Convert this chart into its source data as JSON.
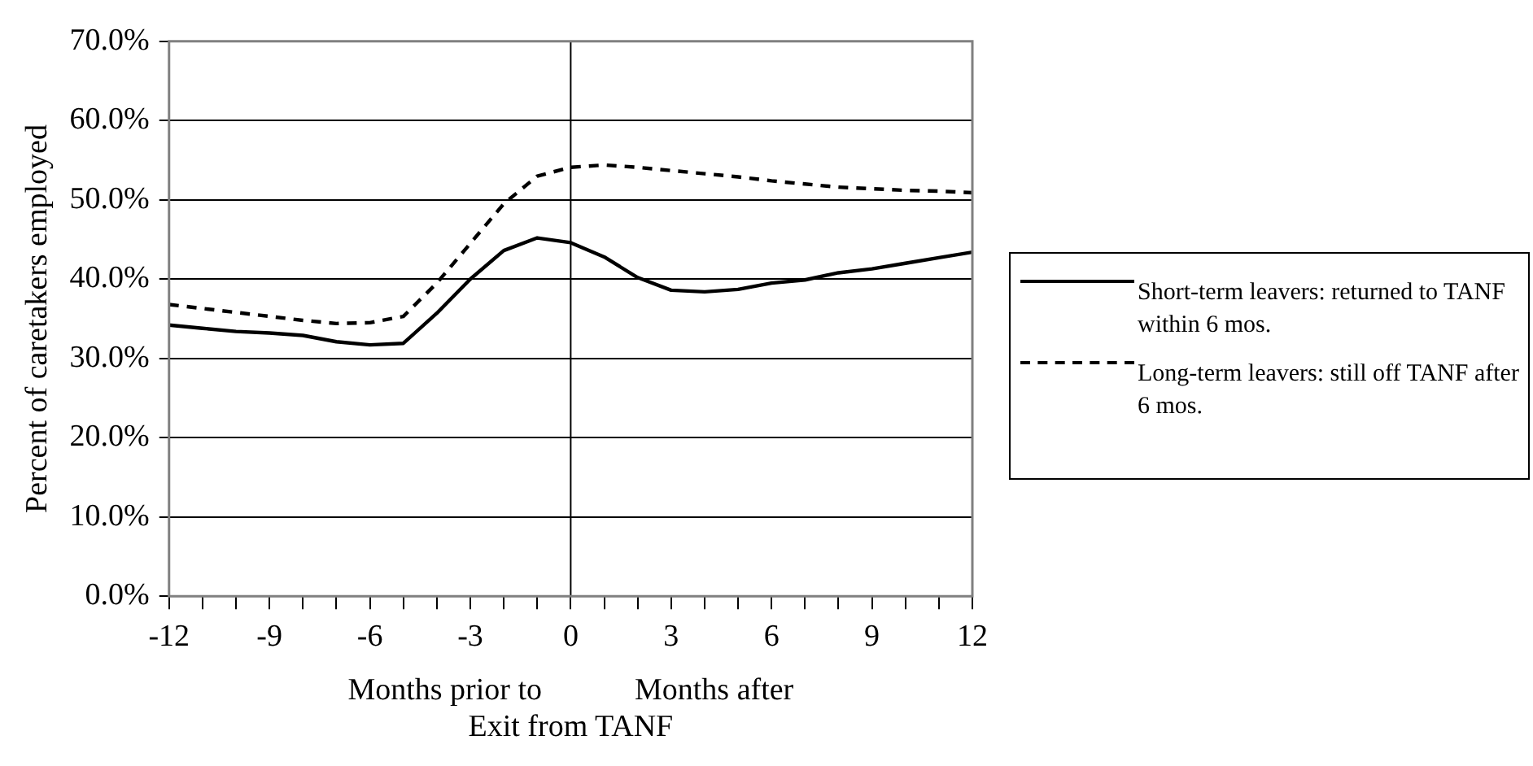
{
  "chart_data": {
    "type": "line",
    "xlabel": "Months prior to            Months after\nExit from TANF",
    "ylabel": "Percent of caretakers employed",
    "x": [
      -12,
      -11,
      -10,
      -9,
      -8,
      -7,
      -6,
      -5,
      -4,
      -3,
      -2,
      -1,
      0,
      1,
      2,
      3,
      4,
      5,
      6,
      7,
      8,
      9,
      10,
      11,
      12
    ],
    "series": [
      {
        "name": "Short-term leavers: returned to TANF within 6 mos.",
        "color": "#000000",
        "line_style": "solid",
        "values": [
          34.2,
          33.8,
          33.4,
          33.2,
          32.9,
          32.1,
          31.7,
          31.9,
          35.7,
          40.0,
          43.6,
          45.2,
          44.6,
          42.8,
          40.2,
          38.6,
          38.4,
          38.7,
          39.5,
          39.9,
          40.8,
          41.3,
          42.0,
          42.7,
          43.4
        ]
      },
      {
        "name": "Long-term leavers: still off TANF after 6 mos.",
        "color": "#000000",
        "line_style": "dashed",
        "values": [
          36.8,
          36.3,
          35.8,
          35.3,
          34.8,
          34.4,
          34.5,
          35.3,
          39.5,
          44.5,
          49.5,
          53.0,
          54.1,
          54.4,
          54.1,
          53.7,
          53.3,
          52.9,
          52.4,
          52.0,
          51.6,
          51.4,
          51.2,
          51.1,
          50.9
        ]
      }
    ],
    "xlim": [
      -12,
      12
    ],
    "xticks": [
      -12,
      {
        "value": -11,
        "label": null
      },
      {
        "value": -10,
        "label": null
      },
      -9,
      {
        "value": -8,
        "label": null
      },
      {
        "value": -7,
        "label": null
      },
      -6,
      {
        "value": -5,
        "label": null
      },
      {
        "value": -4,
        "label": null
      },
      -3,
      {
        "value": -2,
        "label": null
      },
      {
        "value": -1,
        "label": null
      },
      0,
      {
        "value": 1,
        "label": null
      },
      {
        "value": 2,
        "label": null
      },
      3,
      {
        "value": 4,
        "label": null
      },
      {
        "value": 5,
        "label": null
      },
      6,
      {
        "value": 7,
        "label": null
      },
      {
        "value": 8,
        "label": null
      },
      9,
      {
        "value": 10,
        "label": null
      },
      {
        "value": 11,
        "label": null
      },
      12
    ],
    "ylim": [
      0,
      70
    ],
    "yticks": [
      {
        "value": 0,
        "label": "0.0%"
      },
      {
        "value": 10,
        "label": "10.0%"
      },
      {
        "value": 20,
        "label": "20.0%"
      },
      {
        "value": 30,
        "label": "30.0%"
      },
      {
        "value": 40,
        "label": "40.0%"
      },
      {
        "value": 50,
        "label": "50.0%"
      },
      {
        "value": 60,
        "label": "60.0%"
      },
      {
        "value": 70,
        "label": "70.0%"
      }
    ],
    "ref_lines": [
      {
        "axis": "x",
        "value": 0,
        "color": "#000000"
      }
    ],
    "grid": "y",
    "legend": "right",
    "marker": "none"
  }
}
